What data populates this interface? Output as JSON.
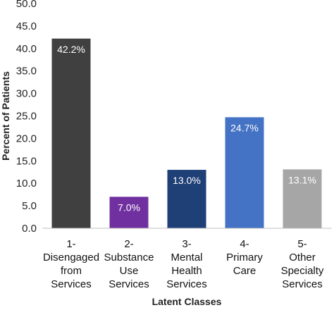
{
  "chart_data": {
    "type": "bar",
    "categories": [
      [
        "1-",
        "Disengaged",
        "from",
        "Services"
      ],
      [
        "2-",
        "Substance",
        "Use",
        "Services"
      ],
      [
        "3-",
        "Mental",
        "Health",
        "Services"
      ],
      [
        "4-",
        "Primary",
        "Care"
      ],
      [
        "5-",
        "Other",
        "Specialty",
        "Services"
      ]
    ],
    "values": [
      42.2,
      7.0,
      13.0,
      24.7,
      13.1
    ],
    "data_labels": [
      "42.2%",
      "7.0%",
      "13.0%",
      "24.7%",
      "13.1%"
    ],
    "colors": [
      "#404040",
      "#7030a0",
      "#1f3f77",
      "#4472c4",
      "#a6a6a6"
    ],
    "label_colors": [
      "#ffffff",
      "#ffffff",
      "#ffffff",
      "#ffffff",
      "#ffffff"
    ],
    "xlabel": "Latent Classes",
    "ylabel": "Percent of Patients",
    "ylim": [
      0,
      50
    ],
    "yticks": [
      "0.0",
      "5.0",
      "10.0",
      "15.0",
      "20.0",
      "25.0",
      "30.0",
      "35.0",
      "40.0",
      "45.0",
      "50.0"
    ],
    "grid": false
  }
}
